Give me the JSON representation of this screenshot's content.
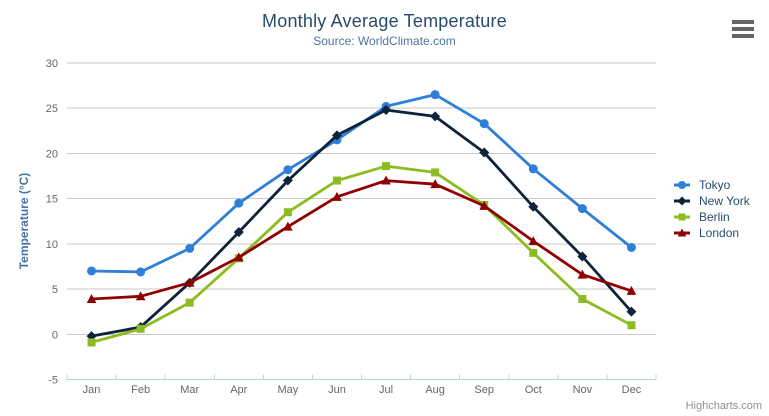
{
  "chart_data": {
    "type": "line",
    "title": "Monthly Average Temperature",
    "subtitle": "Source: WorldClimate.com",
    "ylabel": "Temperature (°C)",
    "xlabel": "",
    "categories": [
      "Jan",
      "Feb",
      "Mar",
      "Apr",
      "May",
      "Jun",
      "Jul",
      "Aug",
      "Sep",
      "Oct",
      "Nov",
      "Dec"
    ],
    "ylim": [
      -5,
      30
    ],
    "ytick_step": 5,
    "ytick_labels": [
      "-5",
      "0",
      "5",
      "10",
      "15",
      "20",
      "25",
      "30"
    ],
    "grid": true,
    "legend_position": "right",
    "series": [
      {
        "name": "Tokyo",
        "color": "#2f7ed8",
        "marker": "circle",
        "values": [
          7.0,
          6.9,
          9.5,
          14.5,
          18.2,
          21.5,
          25.2,
          26.5,
          23.3,
          18.3,
          13.9,
          9.6
        ]
      },
      {
        "name": "New York",
        "color": "#0d233a",
        "marker": "diamond",
        "values": [
          -0.2,
          0.8,
          5.7,
          11.3,
          17.0,
          22.0,
          24.8,
          24.1,
          20.1,
          14.1,
          8.6,
          2.5
        ]
      },
      {
        "name": "Berlin",
        "color": "#8bbc21",
        "marker": "square",
        "values": [
          -0.9,
          0.6,
          3.5,
          8.4,
          13.5,
          17.0,
          18.6,
          17.9,
          14.3,
          9.0,
          3.9,
          1.0
        ]
      },
      {
        "name": "London",
        "color": "#910000",
        "marker": "triangle",
        "values": [
          3.9,
          4.2,
          5.7,
          8.5,
          11.9,
          15.2,
          17.0,
          16.6,
          14.2,
          10.3,
          6.6,
          4.8
        ]
      }
    ]
  },
  "credits": {
    "text": "Highcharts.com"
  },
  "menu": {
    "icon": "hamburger-icon"
  },
  "colors": {
    "title": "#274b6d",
    "subtitle": "#4d759e",
    "axis_title": "#4572a7",
    "axis_labels": "#666666",
    "grid": "#c8c8c8",
    "axis_line": "#c0d0e0",
    "legend_text": "#274b6d",
    "credits": "#909090",
    "menu_icon": "#666666",
    "background": "#ffffff"
  }
}
